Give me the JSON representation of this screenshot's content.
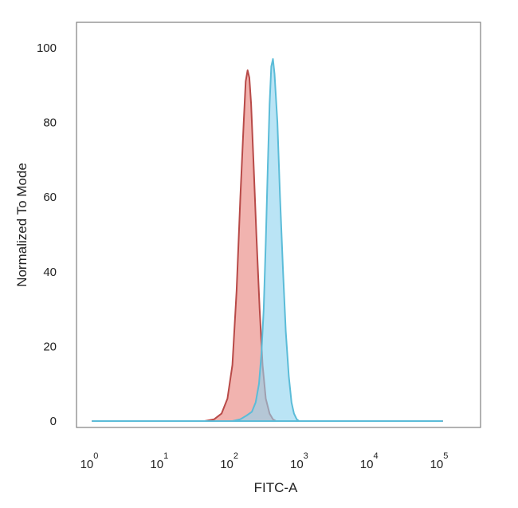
{
  "chart_data": {
    "type": "area",
    "xlabel": "FITC-A",
    "ylabel": "Normalized To Mode",
    "xscale": "log",
    "xlim": [
      1,
      100000
    ],
    "ylim": [
      0,
      100
    ],
    "x_ticks": [
      {
        "base": "10",
        "exp": "0",
        "value": 1
      },
      {
        "base": "10",
        "exp": "1",
        "value": 10
      },
      {
        "base": "10",
        "exp": "2",
        "value": 100
      },
      {
        "base": "10",
        "exp": "3",
        "value": 1000
      },
      {
        "base": "10",
        "exp": "4",
        "value": 10000
      },
      {
        "base": "10",
        "exp": "5",
        "value": 100000
      }
    ],
    "y_ticks": [
      "0",
      "20",
      "40",
      "60",
      "80",
      "100"
    ],
    "grid": false,
    "legend": "none",
    "series": [
      {
        "color": "#e8847e",
        "line_color": "#b84a48",
        "x": [
          1,
          40,
          55,
          70,
          85,
          100,
          115,
          130,
          145,
          155,
          165,
          175,
          185,
          200,
          220,
          245,
          270,
          300,
          340,
          380,
          420,
          100000
        ],
        "y": [
          0,
          0,
          0.5,
          2,
          6,
          15,
          35,
          60,
          80,
          91,
          94,
          92,
          85,
          70,
          50,
          30,
          15,
          6,
          2,
          0.5,
          0,
          0
        ]
      },
      {
        "color": "#8fd3ef",
        "line_color": "#5bbcd8",
        "x": [
          1,
          100,
          130,
          160,
          190,
          215,
          240,
          260,
          280,
          300,
          320,
          340,
          360,
          380,
          400,
          440,
          480,
          530,
          580,
          640,
          700,
          760,
          830,
          900,
          100000
        ],
        "y": [
          0,
          0,
          0.5,
          1.5,
          2.5,
          5,
          10,
          18,
          30,
          48,
          68,
          85,
          95,
          97,
          93,
          80,
          60,
          40,
          24,
          12,
          5,
          2,
          0.5,
          0,
          0
        ]
      }
    ]
  }
}
